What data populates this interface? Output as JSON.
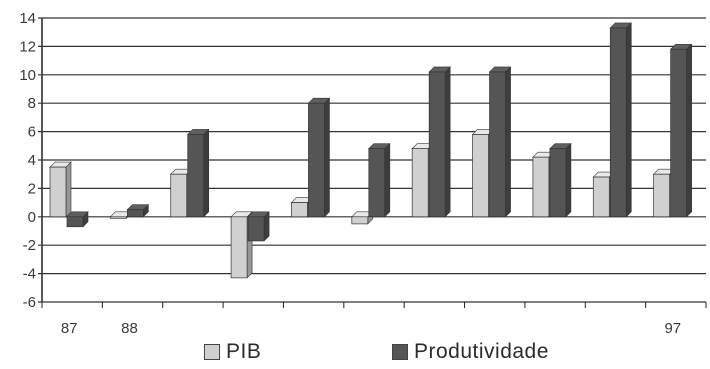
{
  "chart_data": {
    "type": "bar",
    "categories": [
      "87",
      "88",
      "",
      "",
      "",
      "",
      "",
      "",
      "",
      "",
      "97"
    ],
    "series": [
      {
        "name": "PIB",
        "values": [
          3.5,
          0,
          3,
          -4.3,
          1,
          -0.5,
          4.8,
          5.8,
          4.2,
          2.8,
          3
        ]
      },
      {
        "name": "Produtividade",
        "values": [
          -0.7,
          0.5,
          5.8,
          -1.7,
          8,
          4.8,
          10.2,
          10.2,
          4.8,
          13.3,
          11.8
        ]
      }
    ],
    "y_ticks": [
      "14",
      "12",
      "10",
      "8",
      "6",
      "4",
      "2",
      "0",
      "-2",
      "-4",
      "-6"
    ],
    "ylim": [
      -6,
      14
    ],
    "grid": true,
    "legend_position": "bottom",
    "colors": {
      "PIB": "#d0d0d0",
      "Produtividade": "#555555",
      "grid": "#333333",
      "axis": "#222222"
    }
  }
}
